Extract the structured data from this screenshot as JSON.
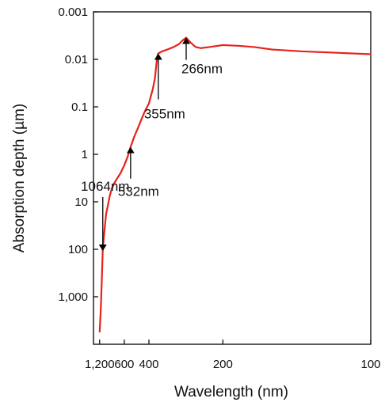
{
  "chart_data": {
    "type": "line",
    "title": "",
    "xlabel": "Wavelength (nm)",
    "ylabel": "Absorption depth (µm)",
    "x_scale": "reciprocal",
    "y_scale": "log",
    "y_inverted": true,
    "xlim": [
      1600,
      100
    ],
    "ylim": [
      10000,
      0.001
    ],
    "x_ticks": [
      1200,
      600,
      400,
      200,
      100
    ],
    "x_tick_labels": [
      "1,200",
      "600",
      "400",
      "200",
      "100"
    ],
    "y_ticks": [
      0.001,
      0.01,
      0.1,
      1,
      10,
      100,
      1000
    ],
    "y_tick_labels": [
      "0.001",
      "0.01",
      "0.1",
      "1",
      "10",
      "100",
      "1,000"
    ],
    "grid": false,
    "series": [
      {
        "color": "#e8211a",
        "x": [
          1200,
          1150,
          1100,
          1064,
          1000,
          950,
          900,
          850,
          800,
          750,
          700,
          650,
          600,
          560,
          532,
          500,
          470,
          450,
          430,
          410,
          400,
          390,
          380,
          370,
          365,
          360,
          355,
          340,
          320,
          300,
          285,
          275,
          266,
          255,
          245,
          235,
          220,
          200,
          180,
          165,
          150,
          130,
          115,
          100
        ],
        "y": [
          5500,
          2000,
          400,
          100,
          38,
          18,
          12,
          7.4,
          5.2,
          4,
          3.2,
          2.5,
          1.7,
          1.1,
          0.7,
          0.43,
          0.28,
          0.2,
          0.14,
          0.1,
          0.085,
          0.06,
          0.042,
          0.025,
          0.015,
          0.009,
          0.0075,
          0.0068,
          0.0062,
          0.0055,
          0.0048,
          0.004,
          0.0035,
          0.0045,
          0.0055,
          0.0058,
          0.0055,
          0.005,
          0.0052,
          0.0055,
          0.0062,
          0.0068,
          0.0072,
          0.0078
        ]
      }
    ],
    "annotations": [
      {
        "label": "1064nm",
        "x": 1064,
        "y": 100,
        "arrow": "down"
      },
      {
        "label": "532nm",
        "x": 532,
        "y": 0.7,
        "arrow": "up"
      },
      {
        "label": "355nm",
        "x": 355,
        "y": 0.0075,
        "arrow": "up"
      },
      {
        "label": "266nm",
        "x": 266,
        "y": 0.0035,
        "arrow": "up"
      }
    ]
  }
}
